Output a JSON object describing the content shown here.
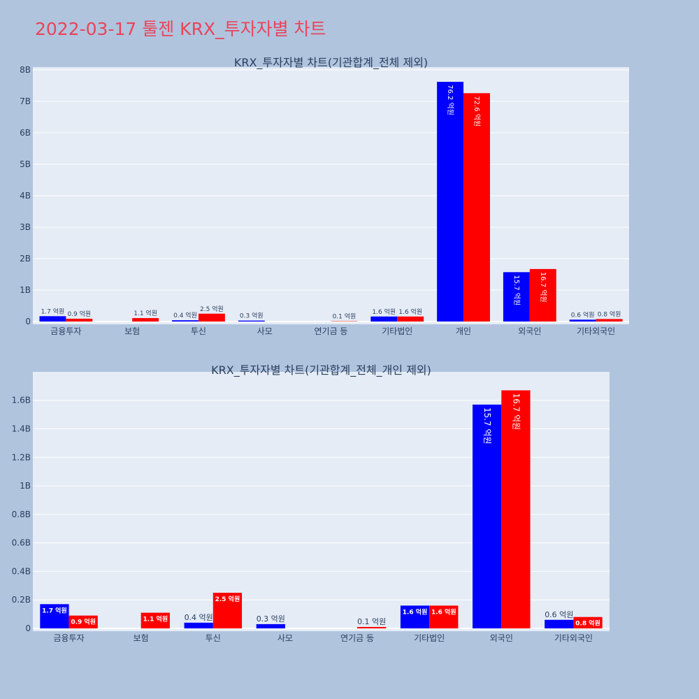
{
  "title": "2022-03-17 툴젠 KRX_투자자별 차트",
  "colors": {
    "buy": "#0000ff",
    "sell": "#ff0000",
    "plot_bg": "#e5ecf6",
    "page_bg": "#b0c4de",
    "title": "#e8455a",
    "text": "#2a3f5f"
  },
  "chart_data": [
    {
      "type": "bar",
      "title": "KRX_투자자별 차트(기관합계_전체 제외)",
      "categories": [
        "금융투자",
        "보험",
        "투신",
        "사모",
        "연기금 등",
        "기타법인",
        "개인",
        "외국인",
        "기타외국인"
      ],
      "series": [
        {
          "color": "#0000ff",
          "values": [
            170000000,
            0,
            40000000,
            30000000,
            0,
            160000000,
            7620000000,
            1570000000,
            60000000
          ],
          "labels": [
            "1.7 억원",
            "",
            "0.4 억원",
            "0.3 억원",
            "",
            "1.6 억원",
            "76.2 억원",
            "15.7 억원",
            "0.6 억원"
          ]
        },
        {
          "color": "#ff0000",
          "values": [
            90000000,
            110000000,
            250000000,
            0,
            10000000,
            160000000,
            7260000000,
            1670000000,
            80000000
          ],
          "labels": [
            "0.9 억원",
            "1.1 억원",
            "2.5 억원",
            "",
            "0.1 억원",
            "1.6 억원",
            "72.6 억원",
            "16.7 억원",
            "0.8 억원"
          ]
        }
      ],
      "ylim": [
        0,
        8000000000
      ],
      "yticks": [
        0,
        1000000000,
        2000000000,
        3000000000,
        4000000000,
        5000000000,
        6000000000,
        7000000000,
        8000000000
      ],
      "ytick_labels": [
        "0",
        "1B",
        "2B",
        "3B",
        "4B",
        "5B",
        "6B",
        "7B",
        "8B"
      ],
      "grid": true,
      "legend": "none"
    },
    {
      "type": "bar",
      "title": "KRX_투자자별 차트(기관합계_전체_개인 제외)",
      "categories": [
        "금융투자",
        "보험",
        "투신",
        "사모",
        "연기금 등",
        "기타법인",
        "외국인",
        "기타외국인"
      ],
      "series": [
        {
          "color": "#0000ff",
          "values": [
            170000000,
            0,
            40000000,
            30000000,
            0,
            160000000,
            1570000000,
            60000000
          ],
          "labels": [
            "1.7 억원",
            "",
            "0.4 억원",
            "0.3 억원",
            "",
            "1.6 억원",
            "15.7 억원",
            "0.6 억원"
          ]
        },
        {
          "color": "#ff0000",
          "values": [
            90000000,
            110000000,
            250000000,
            0,
            10000000,
            160000000,
            1670000000,
            80000000
          ],
          "labels": [
            "0.9 억원",
            "1.1 억원",
            "2.5 억원",
            "",
            "0.1 억원",
            "1.6 억원",
            "16.7 억원",
            "0.8 억원"
          ]
        }
      ],
      "ylim": [
        0,
        1780000000
      ],
      "yticks": [
        0,
        200000000,
        400000000,
        600000000,
        800000000,
        1000000000,
        1200000000,
        1400000000,
        1600000000
      ],
      "ytick_labels": [
        "0",
        "0.2B",
        "0.4B",
        "0.6B",
        "0.8B",
        "1B",
        "1.2B",
        "1.4B",
        "1.6B"
      ],
      "grid": true,
      "legend": "none"
    }
  ]
}
